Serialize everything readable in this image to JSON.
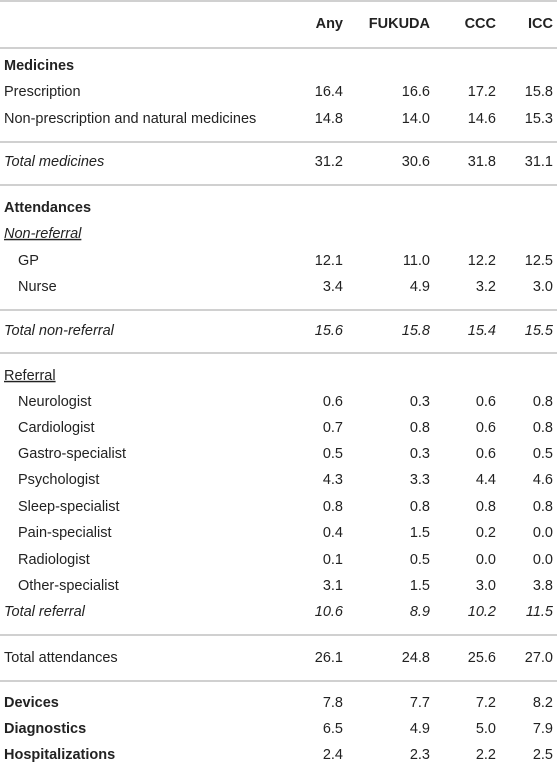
{
  "table": {
    "columns": [
      "Any",
      "FUKUDA",
      "CCC",
      "ICC"
    ],
    "rows": [
      {
        "label": "Medicines"
      },
      {
        "label": "Prescription",
        "values": [
          "16.4",
          "16.6",
          "17.2",
          "15.8"
        ]
      },
      {
        "label": "Non-prescription and natural medicines",
        "values": [
          "14.8",
          "14.0",
          "14.6",
          "15.3"
        ]
      },
      {
        "label": "Total medicines",
        "values": [
          "31.2",
          "30.6",
          "31.8",
          "31.1"
        ]
      },
      {
        "label": "Attendances"
      },
      {
        "label": "Non-referral"
      },
      {
        "label": "GP",
        "values": [
          "12.1",
          "11.0",
          "12.2",
          "12.5"
        ]
      },
      {
        "label": "Nurse",
        "values": [
          "3.4",
          "4.9",
          "3.2",
          "3.0"
        ]
      },
      {
        "label": "Total non-referral",
        "values": [
          "15.6",
          "15.8",
          "15.4",
          "15.5"
        ]
      },
      {
        "label": "Referral"
      },
      {
        "label": "Neurologist",
        "values": [
          "0.6",
          "0.3",
          "0.6",
          "0.8"
        ]
      },
      {
        "label": "Cardiologist",
        "values": [
          "0.7",
          "0.8",
          "0.6",
          "0.8"
        ]
      },
      {
        "label": "Gastro-specialist",
        "values": [
          "0.5",
          "0.3",
          "0.6",
          "0.5"
        ]
      },
      {
        "label": "Psychologist",
        "values": [
          "4.3",
          "3.3",
          "4.4",
          "4.6"
        ]
      },
      {
        "label": "Sleep-specialist",
        "values": [
          "0.8",
          "0.8",
          "0.8",
          "0.8"
        ]
      },
      {
        "label": "Pain-specialist",
        "values": [
          "0.4",
          "1.5",
          "0.2",
          "0.0"
        ]
      },
      {
        "label": "Radiologist",
        "values": [
          "0.1",
          "0.5",
          "0.0",
          "0.0"
        ]
      },
      {
        "label": "Other-specialist",
        "values": [
          "3.1",
          "1.5",
          "3.0",
          "3.8"
        ]
      },
      {
        "label": "Total referral",
        "values": [
          "10.6",
          "8.9",
          "10.2",
          "11.5"
        ]
      },
      {
        "label": "Total attendances",
        "values": [
          "26.1",
          "24.8",
          "25.6",
          "27.0"
        ]
      },
      {
        "label": "Devices",
        "values": [
          "7.8",
          "7.7",
          "7.2",
          "8.2"
        ]
      },
      {
        "label": "Diagnostics",
        "values": [
          "6.5",
          "4.9",
          "5.0",
          "7.9"
        ]
      },
      {
        "label": "Hospitalizations",
        "values": [
          "2.4",
          "2.3",
          "2.2",
          "2.5"
        ]
      }
    ]
  }
}
